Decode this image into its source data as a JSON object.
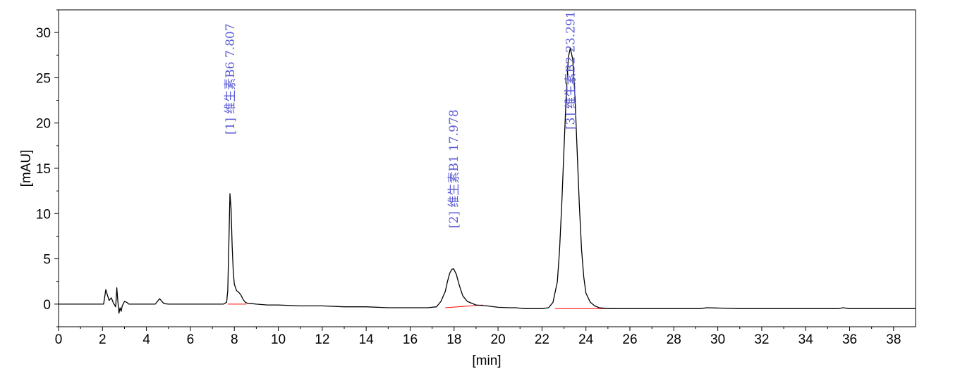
{
  "chart_data": {
    "type": "line",
    "xlabel": "[min]",
    "ylabel": "[mAU]",
    "xlim": [
      0,
      39
    ],
    "ylim": [
      -2.5,
      32.5
    ],
    "x_ticks": [
      "0",
      "2",
      "4",
      "6",
      "8",
      "10",
      "12",
      "14",
      "16",
      "18",
      "20",
      "22",
      "24",
      "26",
      "28",
      "30",
      "32",
      "34",
      "36",
      "38"
    ],
    "y_ticks": [
      "0",
      "5",
      "10",
      "15",
      "20",
      "25",
      "30"
    ],
    "grid": false,
    "colors": {
      "trace": "#000000",
      "baseline": "#ff0000",
      "annotation": "#5b5bd6"
    },
    "peaks": [
      {
        "label": "[1] 维生素B6 7.807",
        "rt": 7.807,
        "height": 12.2,
        "label_top": 31.0
      },
      {
        "label": "[2] 维生素B1 17.978",
        "rt": 17.978,
        "height": 3.9,
        "label_top": 21.5
      },
      {
        "label": "[3] 维生素B2 23.291",
        "rt": 23.291,
        "height": 28.3,
        "label_top": 32.4
      }
    ],
    "baseline_segments": [
      {
        "x": [
          7.7,
          8.55
        ],
        "y": [
          0.0,
          0.0
        ]
      },
      {
        "x": [
          17.6,
          19.3
        ],
        "y": [
          -0.4,
          -0.1
        ]
      },
      {
        "x": [
          22.6,
          25.4
        ],
        "y": [
          -0.5,
          -0.5
        ]
      }
    ],
    "trace": {
      "x": [
        0,
        1,
        2.05,
        2.15,
        2.2,
        2.3,
        2.4,
        2.5,
        2.6,
        2.65,
        2.7,
        2.75,
        2.8,
        2.85,
        2.9,
        3.0,
        3.1,
        3.2,
        3.4,
        3.6,
        4.4,
        4.5,
        4.6,
        4.7,
        4.8,
        5.0,
        6.0,
        7.0,
        7.5,
        7.65,
        7.7,
        7.75,
        7.8,
        7.85,
        7.9,
        7.95,
        8.0,
        8.1,
        8.2,
        8.3,
        8.4,
        8.5,
        8.6,
        8.8,
        9.0,
        9.5,
        10,
        11,
        12,
        13,
        14,
        15,
        16,
        16.8,
        17.2,
        17.4,
        17.6,
        17.7,
        17.8,
        17.9,
        17.978,
        18.1,
        18.2,
        18.3,
        18.4,
        18.6,
        18.8,
        19.0,
        19.5,
        20.0,
        20.5,
        20.8,
        21.0,
        21.2,
        22.0,
        22.3,
        22.5,
        22.7,
        22.8,
        22.9,
        23.0,
        23.1,
        23.2,
        23.291,
        23.4,
        23.5,
        23.6,
        23.7,
        23.8,
        23.9,
        24.0,
        24.2,
        24.4,
        24.6,
        25.0,
        26,
        28,
        29.2,
        29.5,
        31,
        33,
        35.5,
        35.7,
        36,
        39
      ],
      "y": [
        0.0,
        0.0,
        0.0,
        1.6,
        1.2,
        0.4,
        0.7,
        0.1,
        -0.3,
        1.8,
        0.3,
        -1.0,
        -0.4,
        -0.8,
        -0.2,
        0.3,
        0.2,
        0.0,
        0.0,
        0.0,
        0.0,
        0.3,
        0.6,
        0.3,
        0.05,
        0.0,
        0.0,
        0.0,
        0.0,
        0.2,
        1.5,
        6.5,
        12.2,
        10.5,
        6.5,
        3.6,
        2.2,
        1.5,
        1.3,
        1.0,
        0.5,
        0.2,
        0.1,
        0.05,
        0.0,
        -0.1,
        -0.1,
        -0.2,
        -0.2,
        -0.3,
        -0.3,
        -0.4,
        -0.4,
        -0.4,
        -0.3,
        0.3,
        1.4,
        2.5,
        3.4,
        3.85,
        3.9,
        3.3,
        2.4,
        1.6,
        0.9,
        0.3,
        0.1,
        -0.1,
        -0.2,
        -0.35,
        -0.4,
        -0.4,
        -0.45,
        -0.5,
        -0.5,
        -0.4,
        0.2,
        2.5,
        6.0,
        11.0,
        17.0,
        23.0,
        27.3,
        28.3,
        27.0,
        23.0,
        17.0,
        11.0,
        6.0,
        3.0,
        1.2,
        0.2,
        -0.2,
        -0.4,
        -0.5,
        -0.5,
        -0.5,
        -0.5,
        -0.4,
        -0.5,
        -0.5,
        -0.5,
        -0.4,
        -0.5,
        -0.5
      ]
    }
  }
}
